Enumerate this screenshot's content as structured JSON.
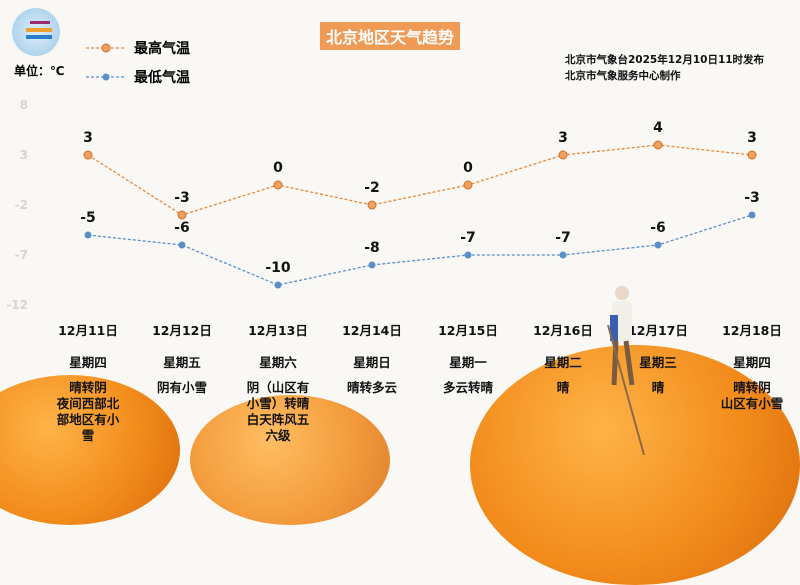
{
  "title": "北京地区天气趋势",
  "issuer": [
    "北京市气象台2025年12月10日11时发布",
    "北京市气象服务中心制作"
  ],
  "unit_label": "单位：℃",
  "colors": {
    "high": "#e8883a",
    "low": "#5b8fc9",
    "title_bg": "#ef9a55"
  },
  "chart_data": {
    "type": "line",
    "title": "北京地区天气趋势",
    "ylabel": "单位：℃",
    "ylim": [
      -12,
      8
    ],
    "yticks": [
      "8",
      "3",
      "-2",
      "-7",
      "-12"
    ],
    "grid": false,
    "legend": "top-left",
    "categories": [
      "12月11日",
      "12月12日",
      "12月13日",
      "12月14日",
      "12月15日",
      "12月16日",
      "12月17日",
      "12月18日"
    ],
    "weekdays": [
      "星期四",
      "星期五",
      "星期六",
      "星期日",
      "星期一",
      "星期二",
      "星期三",
      "星期四"
    ],
    "weather": [
      [
        "晴转阴",
        "夜间西部北",
        "部地区有小",
        "雪"
      ],
      [
        "阴有小雪"
      ],
      [
        "阴（山区有",
        "小雪）转晴",
        "白天阵风五",
        "六级"
      ],
      [
        "晴转多云"
      ],
      [
        "多云转晴"
      ],
      [
        "晴"
      ],
      [
        "晴"
      ],
      [
        "晴转阴",
        "山区有小雪"
      ]
    ],
    "series": [
      {
        "name": "最高气温",
        "values": [
          3,
          -3,
          0,
          -2,
          0,
          3,
          4,
          3
        ]
      },
      {
        "name": "最低气温",
        "values": [
          -5,
          -6,
          -10,
          -8,
          -7,
          -7,
          -6,
          -3
        ]
      }
    ]
  }
}
